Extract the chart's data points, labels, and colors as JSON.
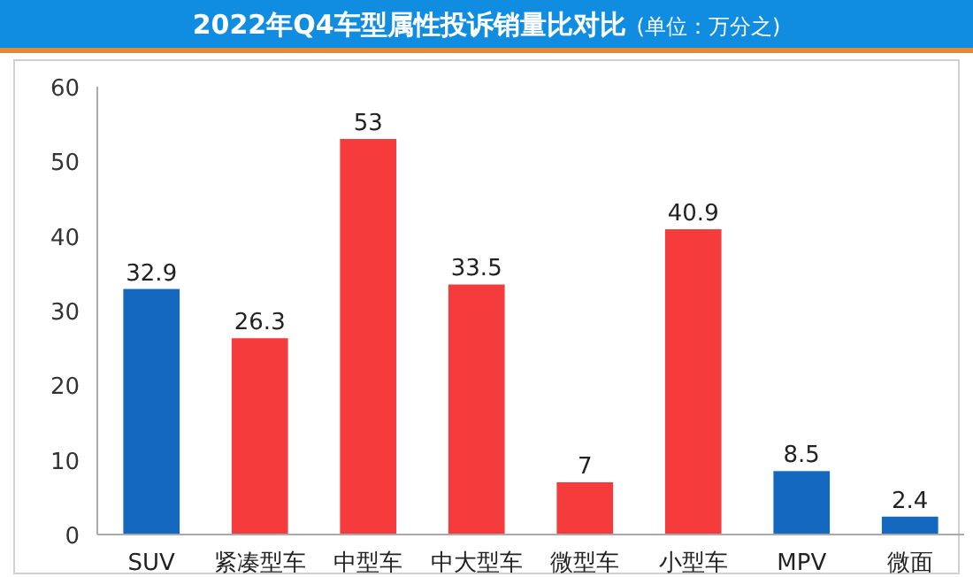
{
  "chart_data": {
    "type": "bar",
    "title": "2022年Q4车型属性投诉销量比对比",
    "subtitle": "(单位：万分之)",
    "categories": [
      "SUV",
      "紧凑型车",
      "中型车",
      "中大型车",
      "微型车",
      "小型车",
      "MPV",
      "微面"
    ],
    "values": [
      32.9,
      26.3,
      53,
      33.5,
      7,
      40.9,
      8.5,
      2.4
    ],
    "colors": [
      "#1469be",
      "#f53b3b",
      "#f53b3b",
      "#f53b3b",
      "#f53b3b",
      "#f53b3b",
      "#1469be",
      "#1469be"
    ],
    "ylim": [
      0,
      60
    ],
    "yticks": [
      0,
      10,
      20,
      30,
      40,
      50,
      60
    ],
    "data_labels": true,
    "grid": false
  }
}
